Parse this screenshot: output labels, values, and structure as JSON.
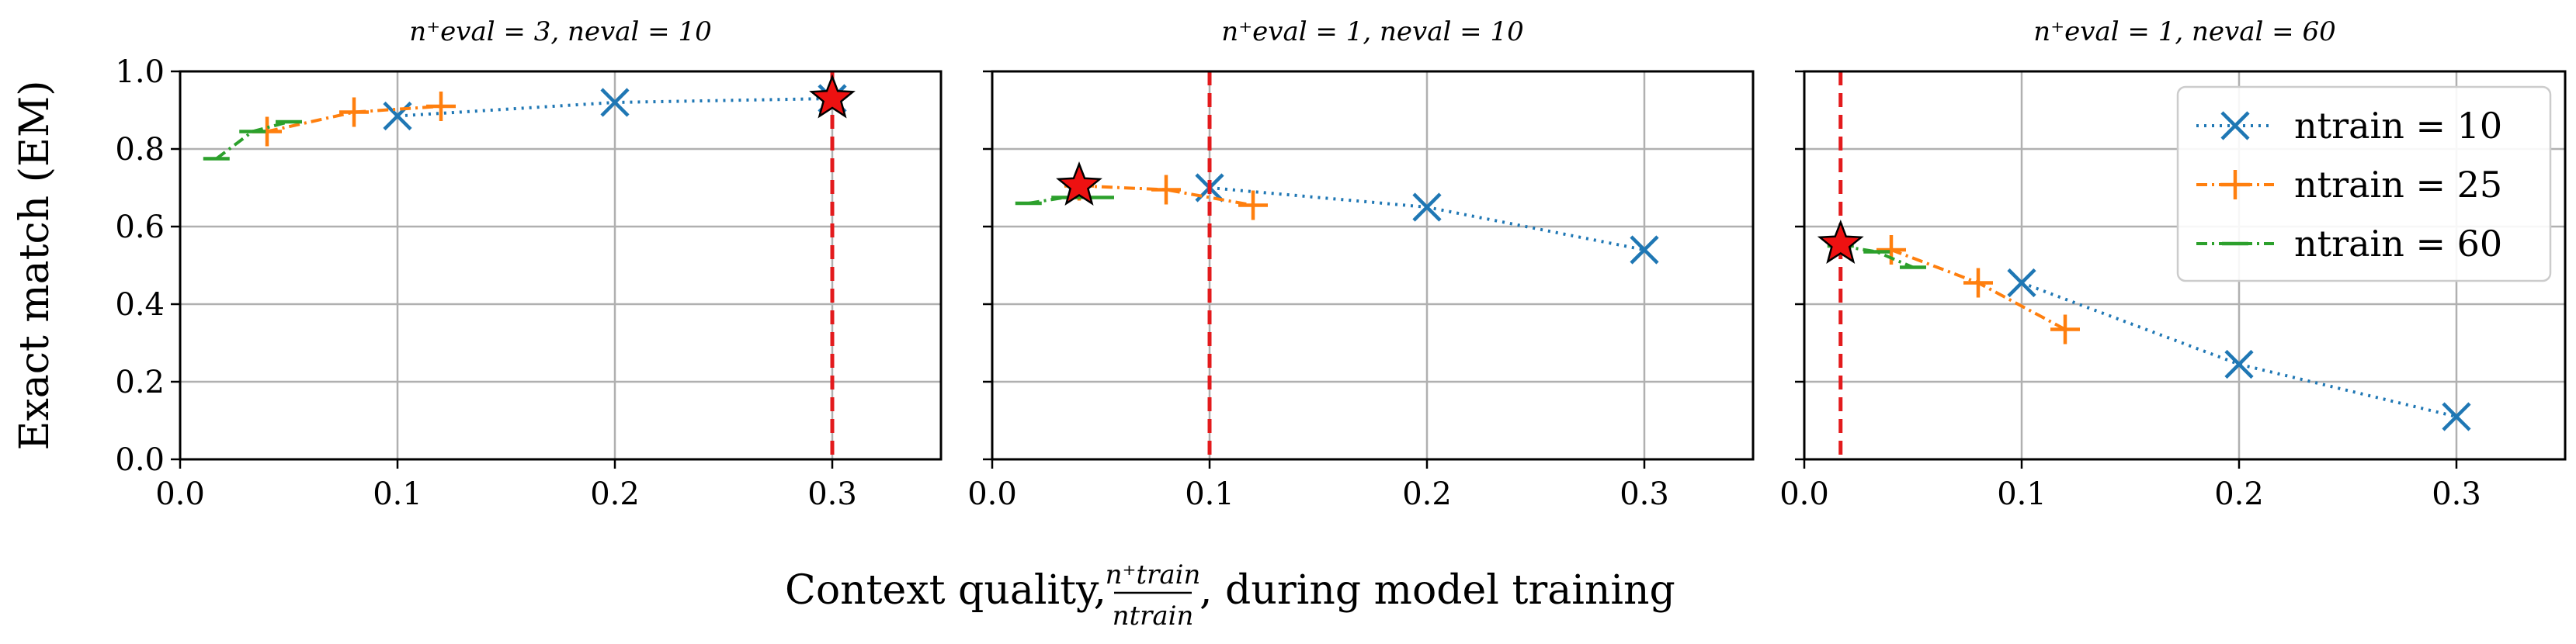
{
  "chart_data": {
    "type": "line",
    "ylabel": "Exact match (EM)",
    "xlabel": {
      "prefix": "Context quality, ",
      "numerator": "n⁺train",
      "denominator": "ntrain",
      "suffix": ", during model training"
    },
    "xlim": [
      0.0,
      0.35
    ],
    "ylim": [
      0.0,
      1.0
    ],
    "xticks": [
      "0.0",
      "0.1",
      "0.2",
      "0.3"
    ],
    "xtick_values": [
      0.0,
      0.1,
      0.2,
      0.3
    ],
    "yticks": [
      "0.0",
      "0.2",
      "0.4",
      "0.6",
      "0.8",
      "1.0"
    ],
    "ytick_values": [
      0.0,
      0.2,
      0.4,
      0.6,
      0.8,
      1.0
    ],
    "grid": true,
    "legend": {
      "placement": "top-right",
      "entries": [
        {
          "label": "ntrain = 10",
          "color": "#1f77b4",
          "marker": "x",
          "dash": "dotted"
        },
        {
          "label": "ntrain = 25",
          "color": "#ff7f0e",
          "marker": "+",
          "dash": "dashdot"
        },
        {
          "label": "ntrain = 60",
          "color": "#2ca02c",
          "marker": "_",
          "dash": "dashdot"
        }
      ]
    },
    "panels": [
      {
        "title": "n⁺eval = 3, neval = 10",
        "vline": 0.3,
        "star": [
          0.3,
          0.93
        ],
        "series": [
          {
            "color": "#1f77b4",
            "marker": "x",
            "x": [
              0.1,
              0.2,
              0.3
            ],
            "y": [
              0.885,
              0.92,
              0.93
            ]
          },
          {
            "color": "#ff7f0e",
            "marker": "+",
            "x": [
              0.04,
              0.08,
              0.12
            ],
            "y": [
              0.845,
              0.895,
              0.91
            ]
          },
          {
            "color": "#2ca02c",
            "marker": "_",
            "x": [
              0.0167,
              0.0333,
              0.05
            ],
            "y": [
              0.775,
              0.845,
              0.87
            ]
          }
        ]
      },
      {
        "title": "n⁺eval = 1, neval = 10",
        "vline": 0.1,
        "star": [
          0.04,
          0.705
        ],
        "series": [
          {
            "color": "#1f77b4",
            "marker": "x",
            "x": [
              0.1,
              0.2,
              0.3
            ],
            "y": [
              0.7,
              0.65,
              0.54
            ]
          },
          {
            "color": "#ff7f0e",
            "marker": "+",
            "x": [
              0.04,
              0.08,
              0.12
            ],
            "y": [
              0.705,
              0.695,
              0.655
            ]
          },
          {
            "color": "#2ca02c",
            "marker": "_",
            "x": [
              0.0167,
              0.0333,
              0.05
            ],
            "y": [
              0.66,
              0.675,
              0.675
            ]
          }
        ]
      },
      {
        "title": "n⁺eval = 1, neval = 60",
        "vline": 0.0167,
        "star": [
          0.0167,
          0.555
        ],
        "series": [
          {
            "color": "#1f77b4",
            "marker": "x",
            "x": [
              0.1,
              0.2,
              0.3
            ],
            "y": [
              0.455,
              0.245,
              0.11
            ]
          },
          {
            "color": "#ff7f0e",
            "marker": "+",
            "x": [
              0.04,
              0.08,
              0.12
            ],
            "y": [
              0.54,
              0.455,
              0.335
            ]
          },
          {
            "color": "#2ca02c",
            "marker": "_",
            "x": [
              0.0167,
              0.0333,
              0.05
            ],
            "y": [
              0.55,
              0.535,
              0.495
            ]
          }
        ]
      }
    ]
  }
}
